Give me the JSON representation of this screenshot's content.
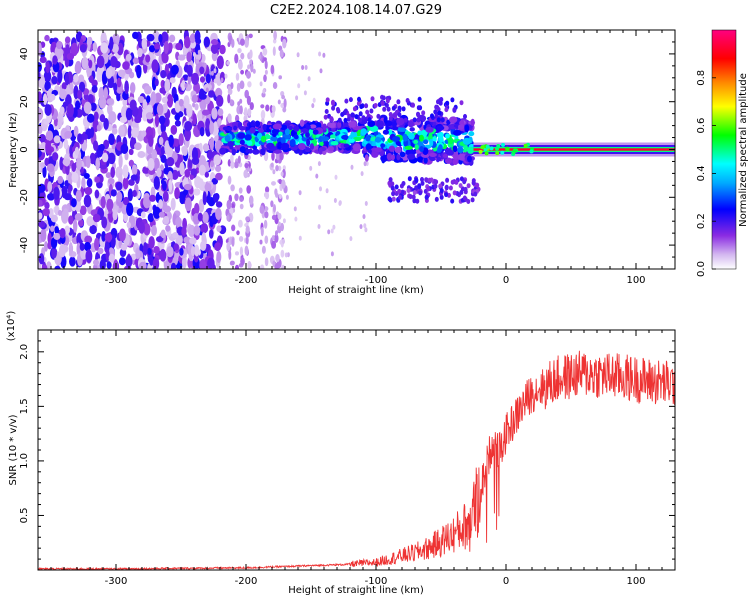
{
  "chart_data": [
    {
      "type": "heatmap",
      "title": "C2E2.2024.108.14.07.G29",
      "xlabel": "Height of straight line (km)",
      "ylabel": "Frequency (Hz)",
      "xlim": [
        -360,
        130
      ],
      "ylim": [
        -50,
        50
      ],
      "xticks": [
        -300,
        -200,
        -100,
        0,
        100
      ],
      "yticks": [
        -40,
        -20,
        0,
        20,
        40
      ],
      "colorbar": {
        "label": "Normalized spectral amplitude",
        "range": [
          0,
          1
        ],
        "ticks": [
          "0.0",
          "0.2",
          "0.4",
          "0.6",
          "0.8"
        ],
        "colors": [
          "#ffffff",
          "#d4b8f0",
          "#8a2be2",
          "#0000ff",
          "#00ffff",
          "#00ff00",
          "#ffff00",
          "#ff8800",
          "#ff0000",
          "#ff0080"
        ]
      },
      "regions": [
        {
          "x_range": [
            -360,
            -220
          ],
          "freq_range": [
            -50,
            48
          ],
          "amplitude": "0.1-0.3",
          "pattern": "scattered"
        },
        {
          "x_range": [
            -220,
            -170
          ],
          "freq_range": [
            -50,
            48
          ],
          "amplitude": "0.05-0.15",
          "pattern": "sparse vertical streaks"
        },
        {
          "x_range": [
            -218,
            -25
          ],
          "freq_range": [
            -10,
            15
          ],
          "amplitude": "0.2-0.6",
          "pattern": "band"
        },
        {
          "x_range": [
            -25,
            130
          ],
          "freq_center": 0,
          "freq_width": 2,
          "amplitude": "0.9-1.0",
          "pattern": "narrow line"
        }
      ]
    },
    {
      "type": "line",
      "xlabel": "Height of straight line (km)",
      "ylabel": "SNR (10 * v/v)",
      "y_multiplier": "(x10⁴)",
      "xlim": [
        -360,
        130
      ],
      "ylim": [
        0,
        2.2
      ],
      "xticks": [
        -300,
        -200,
        -100,
        0,
        100
      ],
      "yticks": [
        0.5,
        1.0,
        1.5,
        2.0
      ],
      "yticklabels": [
        "0.5",
        "1.0",
        "1.5",
        "2.0"
      ],
      "color": "#ee3333",
      "series": [
        {
          "x": [
            -360,
            -300,
            -250,
            -200,
            -175,
            -150,
            -125,
            -100,
            -90,
            -80,
            -70,
            -60,
            -50,
            -40,
            -30,
            -25,
            -20,
            -15,
            -12,
            -10,
            -5,
            0,
            5,
            10,
            15,
            20,
            25,
            30,
            35,
            40,
            50,
            60,
            70,
            80,
            90,
            100,
            110,
            120,
            130
          ],
          "y": [
            0.01,
            0.01,
            0.015,
            0.02,
            0.03,
            0.04,
            0.05,
            0.07,
            0.1,
            0.13,
            0.16,
            0.2,
            0.26,
            0.33,
            0.42,
            0.55,
            0.72,
            0.95,
            1.1,
            1.2,
            1.08,
            1.25,
            1.35,
            1.45,
            1.55,
            1.62,
            1.66,
            1.68,
            1.72,
            1.75,
            1.78,
            1.8,
            1.79,
            1.78,
            1.77,
            1.75,
            1.73,
            1.72,
            1.7
          ]
        }
      ]
    }
  ]
}
